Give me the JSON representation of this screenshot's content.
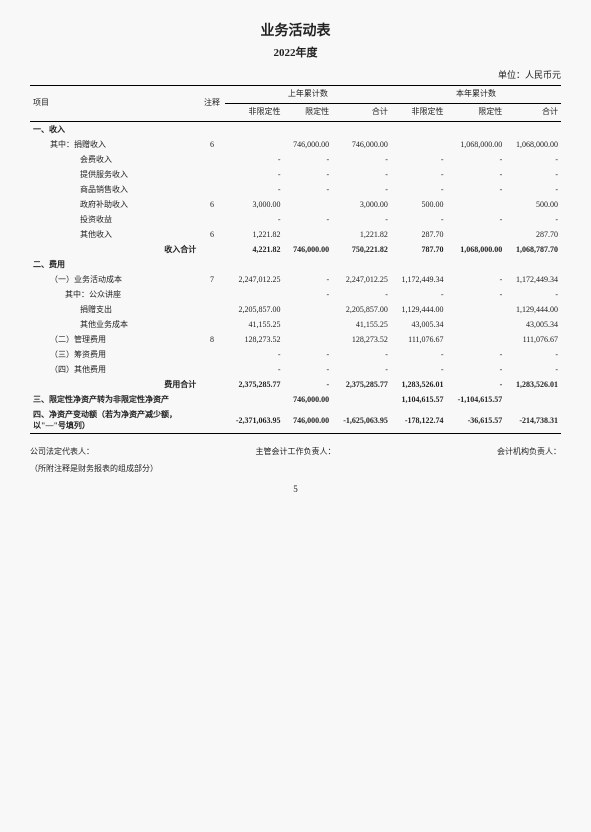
{
  "doc": {
    "title": "业务活动表",
    "year": "2022年度",
    "unit": "单位：人民币元",
    "pageNumber": "5",
    "note": "（所附注释是财务报表的组成部分）"
  },
  "headers": {
    "item": "项目",
    "note": "注释",
    "prior": "上年累计数",
    "current": "本年累计数",
    "unrestricted": "非限定性",
    "restricted": "限定性",
    "total": "合计"
  },
  "signers": {
    "rep": "公司法定代表人：",
    "chief": "主管会计工作负责人：",
    "acct": "会计机构负责人："
  },
  "rows": [
    {
      "label": "一、收入",
      "note": "",
      "p": {
        "u": "",
        "r": "",
        "t": ""
      },
      "c": {
        "u": "",
        "r": "",
        "t": ""
      },
      "bold": true
    },
    {
      "label": "其中：捐赠收入",
      "indent": 1,
      "note": "6",
      "p": {
        "u": "",
        "r": "746,000.00",
        "t": "746,000.00"
      },
      "c": {
        "u": "",
        "r": "1,068,000.00",
        "t": "1,068,000.00"
      }
    },
    {
      "label": "会费收入",
      "indent": 3,
      "note": "",
      "p": {
        "u": "-",
        "r": "-",
        "t": "-"
      },
      "c": {
        "u": "-",
        "r": "-",
        "t": "-"
      }
    },
    {
      "label": "提供服务收入",
      "indent": 3,
      "note": "",
      "p": {
        "u": "-",
        "r": "-",
        "t": "-"
      },
      "c": {
        "u": "-",
        "r": "-",
        "t": "-"
      }
    },
    {
      "label": "商品销售收入",
      "indent": 3,
      "note": "",
      "p": {
        "u": "-",
        "r": "-",
        "t": "-"
      },
      "c": {
        "u": "-",
        "r": "-",
        "t": "-"
      }
    },
    {
      "label": "政府补助收入",
      "indent": 3,
      "note": "6",
      "p": {
        "u": "3,000.00",
        "r": "",
        "t": "3,000.00"
      },
      "c": {
        "u": "500.00",
        "r": "",
        "t": "500.00"
      }
    },
    {
      "label": "投资收益",
      "indent": 3,
      "note": "",
      "p": {
        "u": "-",
        "r": "-",
        "t": "-"
      },
      "c": {
        "u": "-",
        "r": "-",
        "t": "-"
      }
    },
    {
      "label": "其他收入",
      "indent": 3,
      "note": "6",
      "p": {
        "u": "1,221.82",
        "r": "",
        "t": "1,221.82"
      },
      "c": {
        "u": "287.70",
        "r": "",
        "t": "287.70"
      }
    },
    {
      "label": "收入合计",
      "indent": 0,
      "note": "",
      "p": {
        "u": "4,221.82",
        "r": "746,000.00",
        "t": "750,221.82"
      },
      "c": {
        "u": "787.70",
        "r": "1,068,000.00",
        "t": "1,068,787.70"
      },
      "bold": true,
      "align": "right"
    },
    {
      "label": "二、费用",
      "note": "",
      "p": {
        "u": "",
        "r": "",
        "t": ""
      },
      "c": {
        "u": "",
        "r": "",
        "t": ""
      },
      "bold": true
    },
    {
      "label": "（一）业务活动成本",
      "indent": 1,
      "note": "7",
      "p": {
        "u": "2,247,012.25",
        "r": "-",
        "t": "2,247,012.25"
      },
      "c": {
        "u": "1,172,449.34",
        "r": "-",
        "t": "1,172,449.34"
      }
    },
    {
      "label": "其中：公众讲座",
      "indent": 2,
      "note": "",
      "p": {
        "u": "",
        "r": "-",
        "t": "-"
      },
      "c": {
        "u": "-",
        "r": "-",
        "t": "-"
      }
    },
    {
      "label": "捐赠支出",
      "indent": 3,
      "note": "",
      "p": {
        "u": "2,205,857.00",
        "r": "",
        "t": "2,205,857.00"
      },
      "c": {
        "u": "1,129,444.00",
        "r": "",
        "t": "1,129,444.00"
      }
    },
    {
      "label": "其他业务成本",
      "indent": 3,
      "note": "",
      "p": {
        "u": "41,155.25",
        "r": "",
        "t": "41,155.25"
      },
      "c": {
        "u": "43,005.34",
        "r": "",
        "t": "43,005.34"
      }
    },
    {
      "label": "（二）管理费用",
      "indent": 1,
      "note": "8",
      "p": {
        "u": "128,273.52",
        "r": "",
        "t": "128,273.52"
      },
      "c": {
        "u": "111,076.67",
        "r": "",
        "t": "111,076.67"
      }
    },
    {
      "label": "（三）筹资费用",
      "indent": 1,
      "note": "",
      "p": {
        "u": "-",
        "r": "-",
        "t": "-"
      },
      "c": {
        "u": "-",
        "r": "-",
        "t": "-"
      }
    },
    {
      "label": "（四）其他费用",
      "indent": 1,
      "note": "",
      "p": {
        "u": "-",
        "r": "-",
        "t": "-"
      },
      "c": {
        "u": "-",
        "r": "-",
        "t": "-"
      }
    },
    {
      "label": "费用合计",
      "indent": 0,
      "note": "",
      "p": {
        "u": "2,375,285.77",
        "r": "-",
        "t": "2,375,285.77"
      },
      "c": {
        "u": "1,283,526.01",
        "r": "-",
        "t": "1,283,526.01"
      },
      "bold": true,
      "align": "right"
    },
    {
      "label": "三、限定性净资产转为非限定性净资产",
      "note": "",
      "p": {
        "u": "",
        "r": "746,000.00",
        "t": ""
      },
      "c": {
        "u": "1,104,615.57",
        "r": "-1,104,615.57",
        "t": ""
      },
      "bold": true
    },
    {
      "label": "四、净资产变动额（若为净资产减少额，以\"—\"号填列）",
      "note": "",
      "p": {
        "u": "-2,371,063.95",
        "r": "746,000.00",
        "t": "-1,625,063.95"
      },
      "c": {
        "u": "-178,122.74",
        "r": "-36,615.57",
        "t": "-214,738.31"
      },
      "bold": true
    }
  ]
}
